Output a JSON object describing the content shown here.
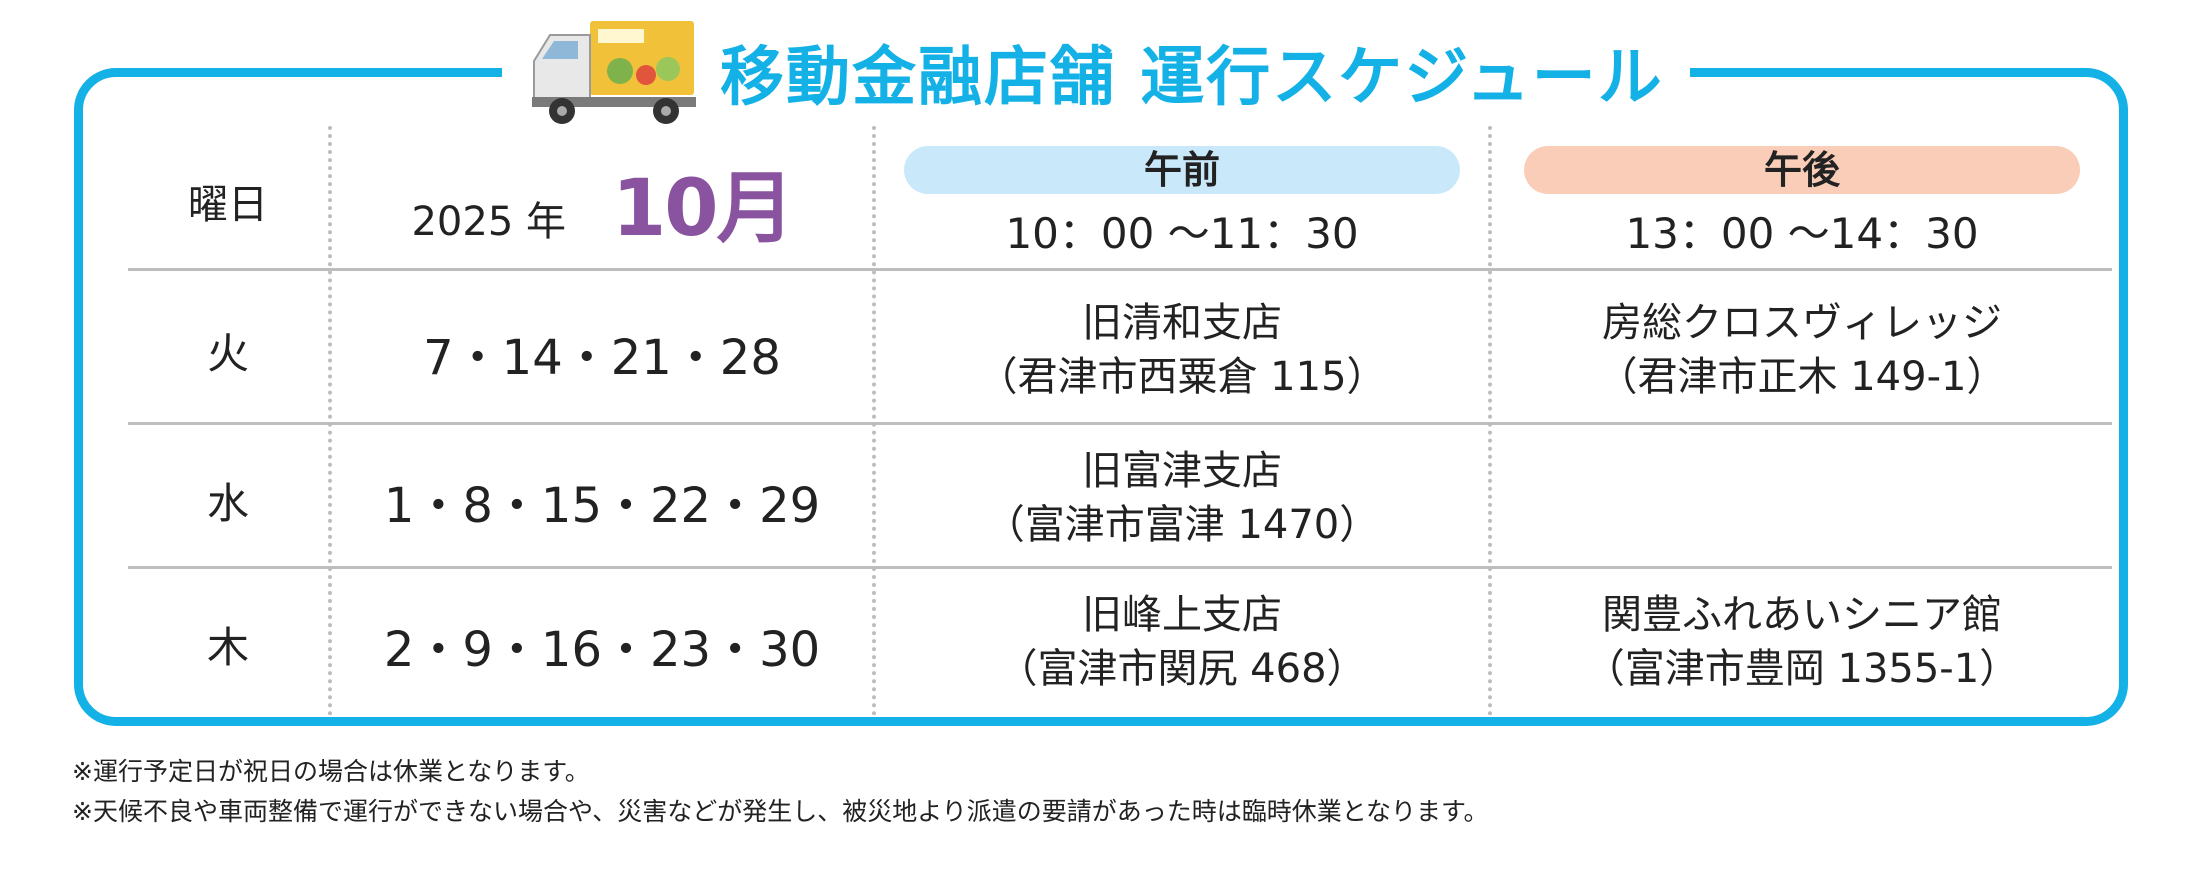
{
  "title": "移動金融店舗 運行スケジュール",
  "colors": {
    "accent": "#14b1e7",
    "month": "#8a53a0",
    "am_pill": "#c9e9fa",
    "pm_pill": "#f9cdb8",
    "divider": "#bdbdbd"
  },
  "header": {
    "day_label": "曜日",
    "year": "2025 年",
    "month": "10月",
    "am": {
      "label": "午前",
      "time": "10：00 ～11：30"
    },
    "pm": {
      "label": "午後",
      "time": "13：00 ～14：30"
    }
  },
  "rows": [
    {
      "day": "火",
      "dates": "7・14・21・28",
      "am_name": "旧清和支店",
      "am_addr": "（君津市西粟倉 115）",
      "pm_name": "房総クロスヴィレッジ",
      "pm_addr": "（君津市正木 149-1）"
    },
    {
      "day": "水",
      "dates": "1・8・15・22・29",
      "am_name": "旧富津支店",
      "am_addr": "（富津市富津 1470）",
      "pm_name": "",
      "pm_addr": ""
    },
    {
      "day": "木",
      "dates": "2・9・16・23・30",
      "am_name": "旧峰上支店",
      "am_addr": "（富津市関尻 468）",
      "pm_name": "関豊ふれあいシニア館",
      "pm_addr": "（富津市豊岡 1355-1）"
    }
  ],
  "notes": [
    "※運行予定日が祝日の場合は休業となります。",
    "※天候不良や車両整備で運行ができない場合や、災害などが発生し、被災地より派遣の要請があった時は臨時休業となります。"
  ]
}
